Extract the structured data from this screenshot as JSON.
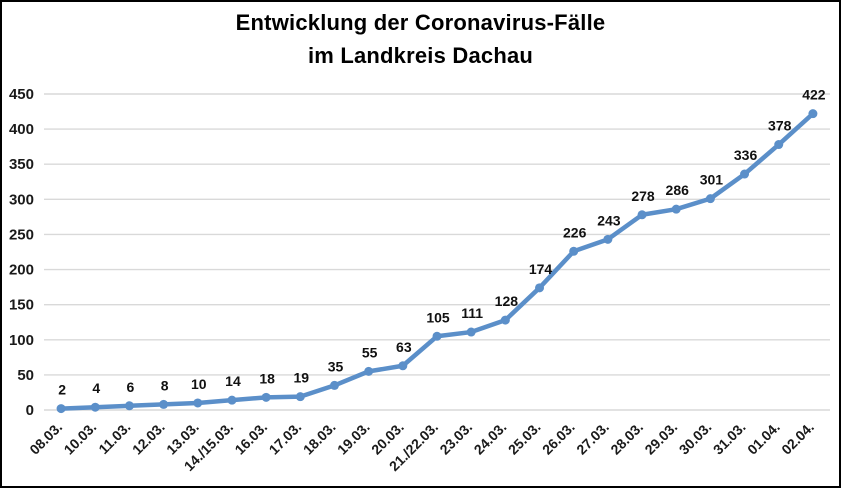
{
  "title": {
    "line1": "Entwicklung der Coronavirus-Fälle",
    "line2": "im Landkreis Dachau"
  },
  "chart_data": {
    "type": "line",
    "title": "Entwicklung der Coronavirus-Fälle im Landkreis Dachau",
    "categories": [
      "08.03.",
      "10.03.",
      "11.03.",
      "12.03.",
      "13.03.",
      "14./15.03.",
      "16.03.",
      "17.03.",
      "18.03.",
      "19.03.",
      "20.03.",
      "21./22.03.",
      "23.03.",
      "24.03.",
      "25.03.",
      "26.03.",
      "27.03.",
      "28.03.",
      "29.03.",
      "30.03.",
      "31.03.",
      "01.04.",
      "02.04."
    ],
    "values": [
      2,
      4,
      6,
      8,
      10,
      14,
      18,
      19,
      35,
      55,
      63,
      105,
      111,
      128,
      174,
      226,
      243,
      278,
      286,
      301,
      336,
      378,
      422
    ],
    "xlabel": "",
    "ylabel": "",
    "ylim": [
      0,
      450
    ],
    "yticks": [
      0,
      50,
      100,
      150,
      200,
      250,
      300,
      350,
      400,
      450
    ],
    "grid": true,
    "legend": "none",
    "data_labels": true,
    "x_label_rotation_deg": 45,
    "line_color": "#5B8FC9",
    "marker_color": "#5B8FC9",
    "grid_color": "#D9D9D9",
    "text_color": "#1a1a1a"
  }
}
